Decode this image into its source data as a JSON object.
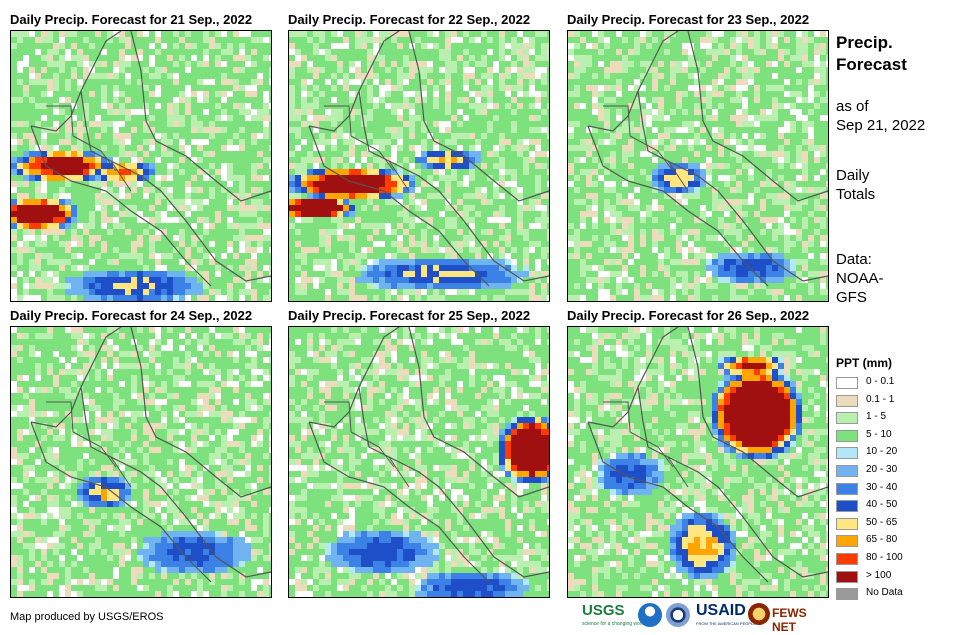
{
  "panels": [
    {
      "title": "Daily Precip. Forecast for 21 Sep., 2022"
    },
    {
      "title": "Daily Precip. Forecast for 22 Sep., 2022"
    },
    {
      "title": "Daily Precip. Forecast for 23 Sep., 2022"
    },
    {
      "title": "Daily Precip. Forecast for 24 Sep., 2022"
    },
    {
      "title": "Daily Precip. Forecast for 25 Sep., 2022"
    },
    {
      "title": "Daily Precip. Forecast for 26 Sep., 2022"
    }
  ],
  "sidebar": {
    "title_line1": "Precip.",
    "title_line2": "Forecast",
    "asof_line1": "as of",
    "asof_line2": "Sep 21, 2022",
    "totals_line1": "Daily",
    "totals_line2": "Totals",
    "source_line1": "Data:",
    "source_line2": "NOAA-",
    "source_line3": "GFS"
  },
  "legend": {
    "title": "PPT (mm)",
    "items": [
      {
        "label": "0 - 0.1",
        "color": "#ffffff"
      },
      {
        "label": "0.1 - 1",
        "color": "#ecdcbc"
      },
      {
        "label": "1 - 5",
        "color": "#b9f0b0"
      },
      {
        "label": "5 - 10",
        "color": "#7de27d"
      },
      {
        "label": "10 - 20",
        "color": "#b3e8f8"
      },
      {
        "label": "20 - 30",
        "color": "#6fb4f0"
      },
      {
        "label": "30 - 40",
        "color": "#3c82e6"
      },
      {
        "label": "40 - 50",
        "color": "#1e4ec8"
      },
      {
        "label": "50 - 65",
        "color": "#ffe680"
      },
      {
        "label": "65 - 80",
        "color": "#ffa500"
      },
      {
        "label": "80 - 100",
        "color": "#ff3c00"
      },
      {
        "label": "> 100",
        "color": "#a01010"
      },
      {
        "label": "No Data",
        "color": "#9a9a9a"
      }
    ]
  },
  "credit": "Map produced by USGS/EROS",
  "logos": {
    "usgs": "USGS",
    "usgs_tagline": "science for a changing world",
    "usaid": "USAID",
    "usaid_tagline": "FROM THE AMERICAN PEOPLE",
    "fews": "FEWS NET"
  }
}
